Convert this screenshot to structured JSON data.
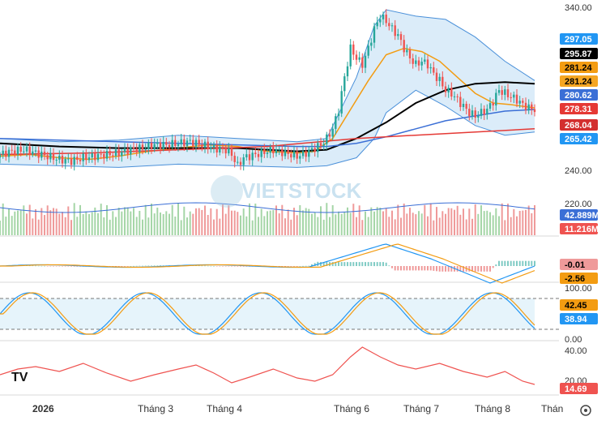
{
  "chart_data": {
    "type": "stock",
    "watermark": "VIETSTOCK",
    "logo": "TV",
    "x_ticks": [
      "2026",
      "Tháng 3",
      "Tháng 4",
      "Tháng 6",
      "Tháng 7",
      "Tháng 8",
      "Thán"
    ],
    "price_panel": {
      "y_ticks": [
        "340.00",
        "240.00",
        "220.00"
      ],
      "ylim": [
        218,
        344
      ],
      "series": [
        {
          "key": "close",
          "color": "#26a69a",
          "points": [
            [
              0,
              252
            ],
            [
              4,
              254
            ],
            [
              8,
              255
            ],
            [
              12,
              253
            ],
            [
              16,
              251
            ],
            [
              20,
              249
            ],
            [
              24,
              248
            ],
            [
              28,
              250
            ],
            [
              32,
              251
            ],
            [
              36,
              252
            ],
            [
              40,
              253
            ],
            [
              44,
              255
            ],
            [
              48,
              256
            ],
            [
              52,
              258
            ],
            [
              56,
              258
            ],
            [
              60,
              259
            ],
            [
              64,
              260
            ],
            [
              68,
              258
            ],
            [
              72,
              256
            ],
            [
              76,
              255
            ],
            [
              78,
              252
            ],
            [
              80,
              245
            ],
            [
              82,
              250
            ],
            [
              84,
              251
            ],
            [
              86,
              252
            ],
            [
              88,
              253
            ],
            [
              90,
              254
            ],
            [
              92,
              255
            ],
            [
              94,
              254
            ],
            [
              96,
              253
            ],
            [
              98,
              252
            ],
            [
              100,
              251
            ],
            [
              102,
              252
            ],
            [
              104,
              254
            ],
            [
              106,
              256
            ],
            [
              108,
              258
            ],
            [
              110,
              262
            ],
            [
              112,
              268
            ],
            [
              114,
              280
            ],
            [
              116,
              300
            ],
            [
              118,
              318
            ],
            [
              120,
              312
            ],
            [
              122,
              308
            ],
            [
              124,
              318
            ],
            [
              126,
              330
            ],
            [
              128,
              338
            ],
            [
              130,
              335
            ],
            [
              132,
              330
            ],
            [
              134,
              326
            ],
            [
              136,
              318
            ],
            [
              138,
              312
            ],
            [
              140,
              308
            ],
            [
              142,
              310
            ],
            [
              144,
              308
            ],
            [
              146,
              302
            ],
            [
              148,
              298
            ],
            [
              150,
              292
            ],
            [
              152,
              290
            ],
            [
              154,
              286
            ],
            [
              156,
              282
            ],
            [
              158,
              278
            ],
            [
              160,
              276
            ],
            [
              162,
              278
            ],
            [
              164,
              280
            ],
            [
              166,
              285
            ],
            [
              168,
              292
            ],
            [
              170,
              290
            ],
            [
              172,
              288
            ],
            [
              174,
              286
            ],
            [
              176,
              283
            ],
            [
              178,
              281
            ],
            [
              180,
              280
            ]
          ]
        },
        {
          "key": "ma20",
          "color": "#f39c12",
          "points": [
            [
              0,
              251
            ],
            [
              10,
              252
            ],
            [
              20,
              250
            ],
            [
              30,
              249
            ],
            [
              40,
              251
            ],
            [
              50,
              254
            ],
            [
              60,
              256
            ],
            [
              70,
              258
            ],
            [
              80,
              257
            ],
            [
              90,
              254
            ],
            [
              100,
              253
            ],
            [
              106,
              254
            ],
            [
              112,
              262
            ],
            [
              118,
              280
            ],
            [
              124,
              298
            ],
            [
              130,
              314
            ],
            [
              136,
              318
            ],
            [
              142,
              316
            ],
            [
              148,
              310
            ],
            [
              154,
              300
            ],
            [
              160,
              290
            ],
            [
              166,
              284
            ],
            [
              172,
              283
            ],
            [
              180,
              281
            ]
          ]
        },
        {
          "key": "ma50",
          "color": "#000000",
          "points": [
            [
              0,
              259
            ],
            [
              20,
              257
            ],
            [
              40,
              256
            ],
            [
              60,
              256
            ],
            [
              80,
              256
            ],
            [
              100,
              254
            ],
            [
              110,
              255
            ],
            [
              120,
              262
            ],
            [
              130,
              272
            ],
            [
              140,
              284
            ],
            [
              150,
              292
            ],
            [
              160,
              296
            ],
            [
              170,
              297
            ],
            [
              180,
              296
            ]
          ]
        },
        {
          "key": "ma100",
          "color": "#3b6fd6",
          "points": [
            [
              0,
              262
            ],
            [
              20,
              261
            ],
            [
              40,
              260
            ],
            [
              60,
              259
            ],
            [
              80,
              258
            ],
            [
              100,
              257
            ],
            [
              110,
              257
            ],
            [
              120,
              259
            ],
            [
              130,
              263
            ],
            [
              140,
              268
            ],
            [
              150,
              273
            ],
            [
              160,
              276
            ],
            [
              170,
              279
            ],
            [
              180,
              280
            ]
          ]
        },
        {
          "key": "ma200",
          "color": "#e53935",
          "points": [
            [
              0,
              252
            ],
            [
              30,
              253
            ],
            [
              60,
              255
            ],
            [
              90,
              257
            ],
            [
              120,
              262
            ],
            [
              150,
              265
            ],
            [
              180,
              268
            ]
          ]
        }
      ],
      "band_upper": [
        [
          0,
          262
        ],
        [
          20,
          260
        ],
        [
          40,
          261
        ],
        [
          60,
          264
        ],
        [
          80,
          262
        ],
        [
          100,
          260
        ],
        [
          110,
          262
        ],
        [
          120,
          300
        ],
        [
          126,
          332
        ],
        [
          130,
          342
        ],
        [
          140,
          338
        ],
        [
          150,
          336
        ],
        [
          160,
          325
        ],
        [
          170,
          310
        ],
        [
          180,
          298
        ]
      ],
      "band_lower": [
        [
          0,
          246
        ],
        [
          20,
          245
        ],
        [
          40,
          244
        ],
        [
          60,
          246
        ],
        [
          80,
          245
        ],
        [
          100,
          244
        ],
        [
          110,
          245
        ],
        [
          120,
          250
        ],
        [
          126,
          262
        ],
        [
          130,
          278
        ],
        [
          140,
          292
        ],
        [
          150,
          282
        ],
        [
          160,
          270
        ],
        [
          170,
          264
        ],
        [
          180,
          266
        ]
      ],
      "badges": [
        {
          "value": "297.05",
          "color": "#2196f3",
          "text_color": "#ffffff"
        },
        {
          "value": "295.87",
          "color": "#000000",
          "text_color": "#ffffff"
        },
        {
          "value": "281.24",
          "color": "#f39c12",
          "text_color": "#000000"
        },
        {
          "value": "281.24",
          "color": "#f5a623",
          "text_color": "#000000"
        },
        {
          "value": "280.62",
          "color": "#3b6fd6",
          "text_color": "#ffffff"
        },
        {
          "value": "278.31",
          "color": "#e53935",
          "text_color": "#ffffff"
        },
        {
          "value": "268.04",
          "color": "#d32f2f",
          "text_color": "#ffffff"
        },
        {
          "value": "265.42",
          "color": "#2196f3",
          "text_color": "#ffffff"
        }
      ]
    },
    "volume_panel": {
      "badges": [
        {
          "value": "42.889M",
          "color": "#3b6fd6",
          "text_color": "#ffffff"
        },
        {
          "value": "11.216M",
          "color": "#ef5350",
          "text_color": "#ffffff"
        }
      ]
    },
    "macd_panel": {
      "badges": [
        {
          "value": "-0.01",
          "color": "#ef9a9a",
          "text_color": "#000000"
        },
        {
          "value": "-2.56",
          "color": "#f39c12",
          "text_color": "#000000"
        }
      ]
    },
    "stoch_panel": {
      "y_ticks": [
        "100.00",
        "0.00"
      ],
      "badges": [
        {
          "value": "42.45",
          "color": "#f39c12",
          "text_color": "#000000"
        },
        {
          "value": "38.94",
          "color": "#2196f3",
          "text_color": "#ffffff"
        }
      ]
    },
    "rsi_panel": {
      "y_ticks": [
        "40.00",
        "20.00"
      ],
      "badges": [
        {
          "value": "14.69",
          "color": "#ef5350",
          "text_color": "#ffffff"
        }
      ]
    }
  },
  "colors": {
    "up": "#26a69a",
    "down": "#ef5350",
    "band_fill": "#cfe6f7"
  }
}
